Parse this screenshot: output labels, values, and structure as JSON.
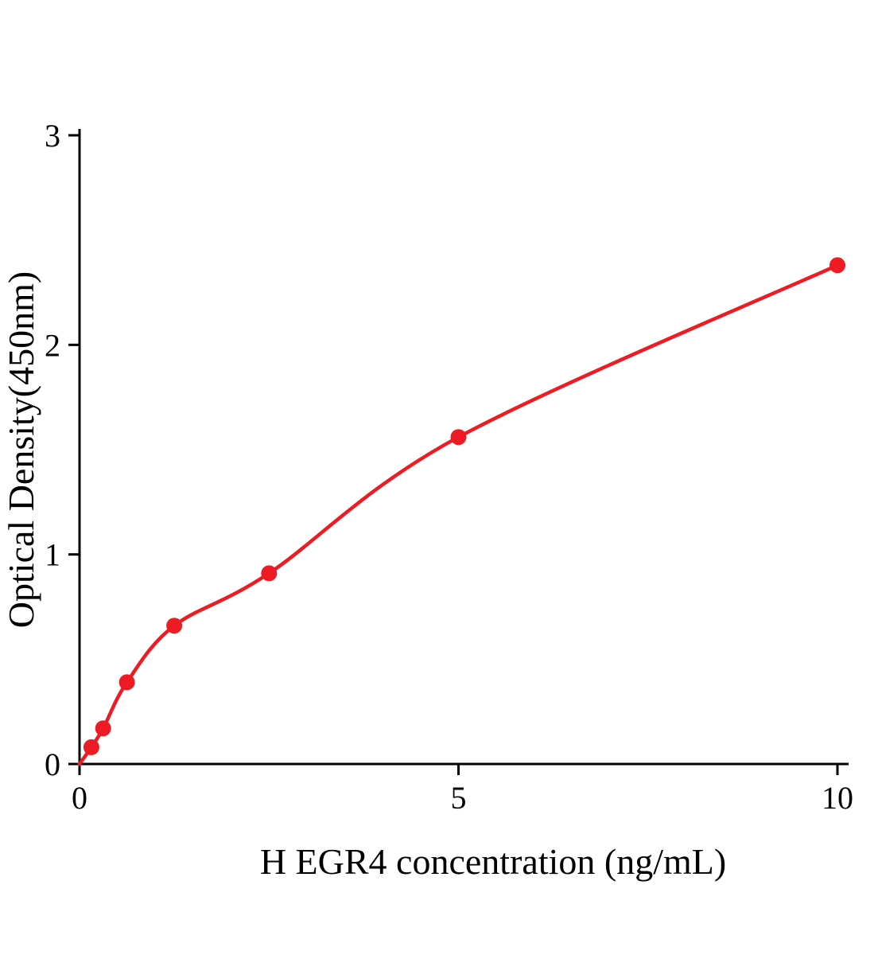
{
  "figure": {
    "background_color": "#ffffff",
    "description": "ELISA standard curve"
  },
  "chart_data": {
    "type": "scatter",
    "title": "",
    "xlabel": "H EGR4 concentration (ng/mL)",
    "ylabel": "Optical Density(450nm)",
    "x": [
      0.156,
      0.312,
      0.625,
      1.25,
      2.5,
      5,
      10
    ],
    "y": [
      0.08,
      0.17,
      0.39,
      0.66,
      0.91,
      1.56,
      2.38
    ],
    "curve_start": {
      "x": 0,
      "y": 0
    },
    "xlim": [
      0,
      10
    ],
    "ylim": [
      0,
      3
    ],
    "xticks": [
      0,
      5,
      10
    ],
    "yticks": [
      0,
      1,
      2,
      3
    ],
    "grid": false,
    "legend_position": "none",
    "point_color": "#ed1c24",
    "line_color": "#ed1c24",
    "axis_color": "#000000",
    "marker_radius": 10,
    "line_width": 4.5
  }
}
